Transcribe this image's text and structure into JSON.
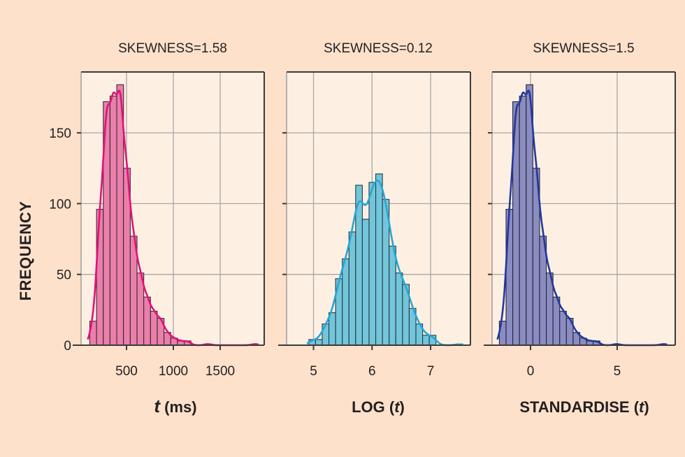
{
  "theme": {
    "background": "#fde1cb",
    "plot_background": "#fdf0e3",
    "grid_color": "#a9a6a3",
    "frame_color": "#3b3a3a"
  },
  "chart_data": [
    {
      "type": "bar",
      "subtype": "histogram_with_kde",
      "title": "SKEWNESS=1.58",
      "xlabel": "t (ms)",
      "xlabel_parts": {
        "italic": "t",
        "rest": " (ms)",
        "prefix": ""
      },
      "ylabel": "FREQUENCY",
      "xlim": [
        15,
        1970
      ],
      "ylim": [
        0,
        193
      ],
      "xticks": [
        500,
        1000,
        1500
      ],
      "xtick_labels": [
        "500",
        "1000",
        "1500"
      ],
      "yticks": [
        0,
        50,
        100,
        150
      ],
      "ytick_labels": [
        "0",
        "50",
        "100",
        "150"
      ],
      "show_ytick_labels": true,
      "grid": true,
      "bin_start": 108,
      "bin_width": 72,
      "counts": [
        17,
        96,
        172,
        176,
        184,
        125,
        77,
        51,
        34,
        24,
        19,
        9,
        5,
        3,
        3,
        0,
        0,
        1,
        0,
        0,
        0,
        0,
        0,
        0,
        1
      ],
      "bar_color": "#ea7fab",
      "bar_edge": "#3a2a33",
      "kde_color": "#e2127a"
    },
    {
      "type": "bar",
      "subtype": "histogram_with_kde",
      "title": "SKEWNESS=0.12",
      "xlabel": "LOG (t)",
      "xlabel_parts": {
        "prefix": "LOG (",
        "italic": "t",
        "rest": ")"
      },
      "ylabel": "",
      "xlim": [
        4.54,
        7.68
      ],
      "ylim": [
        0,
        193
      ],
      "xticks": [
        5,
        6,
        7
      ],
      "xtick_labels": [
        "5",
        "6",
        "7"
      ],
      "yticks": [
        0,
        50,
        100,
        150
      ],
      "ytick_labels": [
        "",
        "",
        "",
        ""
      ],
      "show_ytick_labels": false,
      "grid": true,
      "bin_start": 4.92,
      "bin_width": 0.1143,
      "counts": [
        4,
        4,
        15,
        23,
        47,
        61,
        80,
        113,
        89,
        115,
        121,
        103,
        70,
        51,
        43,
        26,
        15,
        7,
        7,
        0,
        0,
        0,
        1
      ],
      "bar_color": "#73c5da",
      "bar_edge": "#243a44",
      "kde_color": "#27a5d4"
    },
    {
      "type": "bar",
      "subtype": "histogram_with_kde",
      "title": "SKEWNESS=1.5",
      "xlabel": "STANDARDISE (t)",
      "xlabel_parts": {
        "prefix": "STANDARDISE (",
        "italic": "t",
        "rest": ")"
      },
      "ylabel": "",
      "xlim": [
        -2.22,
        8.35
      ],
      "ylim": [
        0,
        193
      ],
      "xticks": [
        0,
        5
      ],
      "xtick_labels": [
        "0",
        "5"
      ],
      "yticks": [
        0,
        50,
        100,
        150
      ],
      "ytick_labels": [
        "",
        "",
        "",
        ""
      ],
      "show_ytick_labels": false,
      "grid": true,
      "bin_start": -1.8,
      "bin_width": 0.387,
      "counts": [
        17,
        96,
        172,
        176,
        184,
        125,
        77,
        51,
        34,
        24,
        19,
        9,
        5,
        3,
        3,
        0,
        0,
        1,
        0,
        0,
        0,
        0,
        0,
        0,
        1
      ],
      "bar_color": "#8b8cc0",
      "bar_edge": "#25253f",
      "kde_color": "#23389c"
    }
  ]
}
